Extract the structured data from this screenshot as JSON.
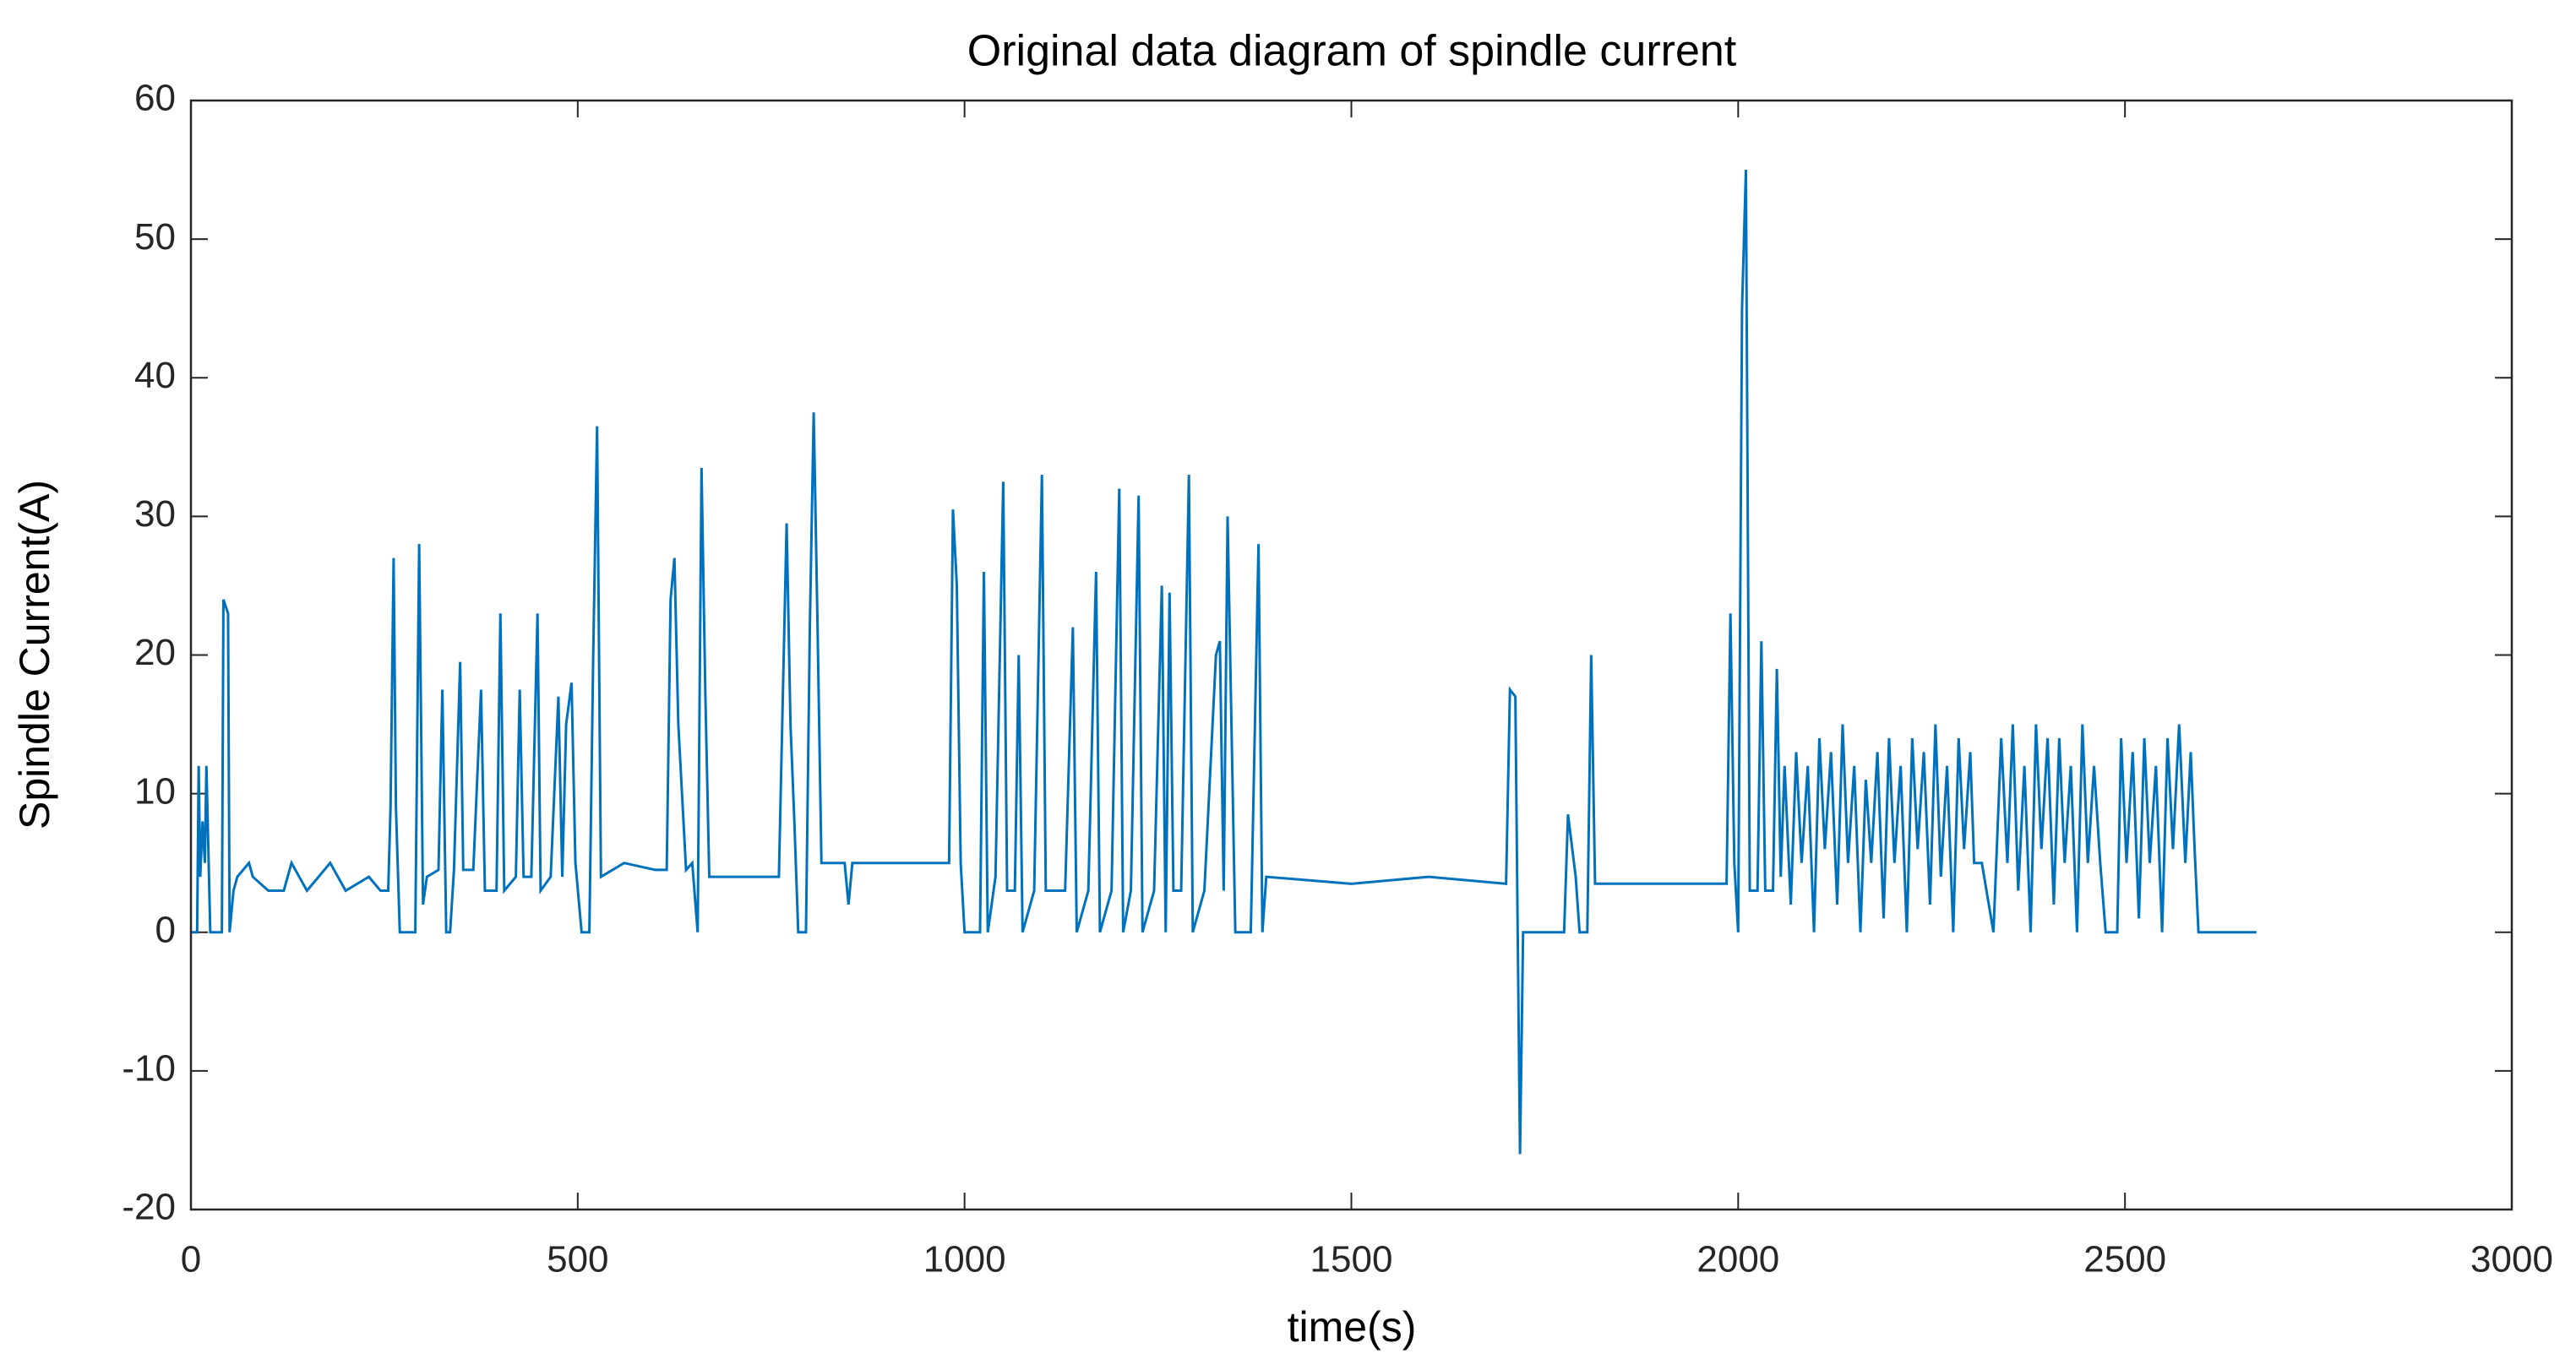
{
  "chart_data": {
    "type": "line",
    "title": "Original data diagram of spindle current",
    "x_label": "time(s)",
    "y_label": "Spindle Current(A)",
    "xlim": [
      0,
      3000
    ],
    "xticks": [
      0,
      500,
      1000,
      1500,
      2000,
      2500,
      3000
    ],
    "ylim": [
      -20,
      60
    ],
    "yticks": [
      -20,
      -10,
      0,
      10,
      20,
      30,
      40,
      50,
      60
    ],
    "grid": false,
    "series": [
      {
        "name": "Spindle Current",
        "color": "#0072bd",
        "x": [
          0,
          8,
          10,
          12,
          15,
          18,
          20,
          25,
          40,
          42,
          48,
          50,
          55,
          60,
          75,
          80,
          100,
          120,
          130,
          140,
          150,
          180,
          200,
          230,
          245,
          255,
          258,
          262,
          265,
          270,
          290,
          295,
          300,
          305,
          320,
          325,
          330,
          335,
          340,
          348,
          352,
          365,
          375,
          380,
          395,
          400,
          405,
          420,
          425,
          430,
          440,
          448,
          452,
          465,
          475,
          480,
          485,
          492,
          497,
          505,
          515,
          520,
          525,
          530,
          560,
          600,
          615,
          620,
          625,
          630,
          640,
          648,
          655,
          660,
          665,
          670,
          700,
          760,
          770,
          775,
          780,
          785,
          795,
          800,
          805,
          810,
          815,
          845,
          850,
          855,
          980,
          985,
          990,
          995,
          1000,
          1020,
          1025,
          1030,
          1040,
          1050,
          1055,
          1065,
          1070,
          1075,
          1090,
          1100,
          1105,
          1130,
          1140,
          1145,
          1160,
          1170,
          1175,
          1190,
          1200,
          1205,
          1215,
          1225,
          1230,
          1245,
          1255,
          1260,
          1265,
          1270,
          1280,
          1290,
          1295,
          1310,
          1325,
          1330,
          1335,
          1340,
          1345,
          1350,
          1370,
          1380,
          1385,
          1390,
          1500,
          1600,
          1700,
          1705,
          1712,
          1715,
          1718,
          1722,
          1775,
          1780,
          1790,
          1795,
          1805,
          1810,
          1815,
          1840,
          1985,
          1990,
          1995,
          2000,
          2005,
          2010,
          2015,
          2025,
          2030,
          2035,
          2045,
          2050,
          2055,
          2060,
          2068,
          2075,
          2082,
          2090,
          2098,
          2105,
          2112,
          2120,
          2128,
          2135,
          2142,
          2150,
          2158,
          2165,
          2172,
          2180,
          2188,
          2195,
          2202,
          2210,
          2218,
          2225,
          2232,
          2240,
          2248,
          2255,
          2262,
          2270,
          2278,
          2285,
          2292,
          2300,
          2305,
          2315,
          2330,
          2340,
          2348,
          2355,
          2362,
          2370,
          2378,
          2385,
          2392,
          2400,
          2408,
          2415,
          2422,
          2430,
          2438,
          2445,
          2452,
          2460,
          2468,
          2475,
          2490,
          2495,
          2502,
          2510,
          2518,
          2525,
          2532,
          2540,
          2548,
          2555,
          2562,
          2570,
          2578,
          2585,
          2590,
          2595,
          2670
        ],
        "values": [
          0,
          0,
          12,
          4,
          8,
          5,
          12,
          0,
          0,
          24,
          23,
          0,
          3,
          4,
          5,
          4,
          3,
          3,
          5,
          4,
          3,
          5,
          3,
          4,
          3,
          3,
          9,
          27,
          9,
          0,
          0,
          28,
          2,
          4,
          4.5,
          17.5,
          0,
          0,
          4.5,
          19.5,
          4.5,
          4.5,
          17.5,
          3,
          3,
          23,
          3,
          4,
          17.5,
          4,
          4,
          23,
          3,
          4,
          17,
          4,
          15,
          18,
          5,
          0,
          0,
          20,
          36.5,
          4,
          5,
          4.5,
          4.5,
          24,
          27,
          15,
          4.5,
          5,
          0,
          33.5,
          17,
          4,
          4,
          4,
          29.5,
          15,
          8,
          0,
          0,
          22,
          37.5,
          22,
          5,
          5,
          2,
          5,
          5,
          30.5,
          25,
          5,
          0,
          0,
          26,
          0,
          4,
          32.5,
          3,
          3,
          20,
          0,
          3,
          33,
          3,
          3,
          22,
          0,
          3,
          26,
          0,
          3,
          32,
          0,
          3,
          31.5,
          0,
          3,
          25,
          0,
          24.5,
          3,
          3,
          33,
          0,
          3,
          20,
          21,
          3,
          30,
          15,
          0,
          0,
          28,
          0,
          4,
          3.5,
          4,
          3.5,
          17.5,
          17,
          0,
          -16,
          0,
          0,
          8.5,
          4,
          0,
          0,
          20,
          3.5,
          3.5,
          3.5,
          23,
          5,
          0,
          45,
          55,
          3,
          3,
          21,
          3,
          3,
          19,
          4,
          12,
          2,
          13,
          5,
          12,
          0,
          14,
          6,
          13,
          2,
          15,
          5,
          12,
          0,
          11,
          5,
          13,
          1,
          14,
          5,
          12,
          0,
          14,
          6,
          13,
          2,
          15,
          4,
          12,
          0,
          14,
          6,
          13,
          5,
          5,
          0,
          14,
          5,
          15,
          3,
          12,
          0,
          15,
          6,
          14,
          2,
          14,
          5,
          12,
          0,
          15,
          5,
          12,
          5,
          0,
          0,
          14,
          5,
          13,
          1,
          14,
          5,
          12,
          0,
          14,
          6,
          15,
          5,
          13,
          6,
          0,
          0
        ]
      }
    ]
  }
}
